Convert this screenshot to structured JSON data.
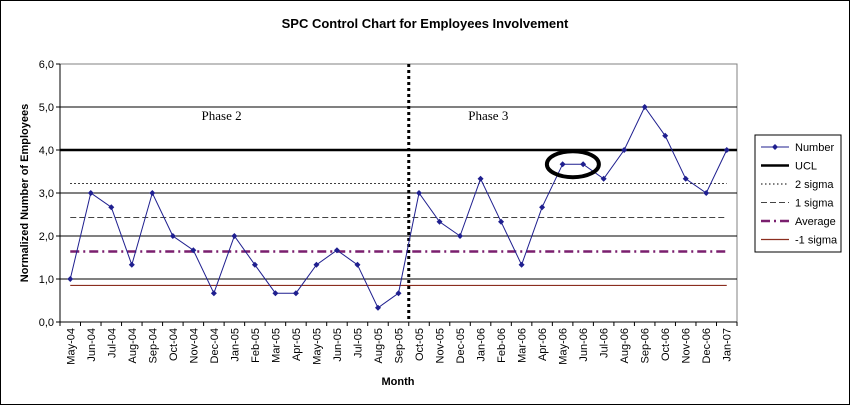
{
  "chart_data": {
    "type": "line",
    "title": "SPC Control Chart for Employees Involvement",
    "xlabel": "Month",
    "ylabel": "Normalized Number of Employees",
    "ylim": [
      0,
      6
    ],
    "y_ticks": [
      "0,0",
      "1,0",
      "2,0",
      "3,0",
      "4,0",
      "5,0",
      "6,0"
    ],
    "grid": true,
    "legend_position": "right",
    "categories": [
      "May-04",
      "Jun-04",
      "Jul-04",
      "Aug-04",
      "Sep-04",
      "Oct-04",
      "Nov-04",
      "Dec-04",
      "Jan-05",
      "Feb-05",
      "Mar-05",
      "Apr-05",
      "May-05",
      "Jun-05",
      "Jul-05",
      "Aug-05",
      "Sep-05",
      "Oct-05",
      "Nov-05",
      "Dec-05",
      "Jan-06",
      "Feb-06",
      "Mar-06",
      "Apr-06",
      "May-06",
      "Jun-06",
      "Jul-06",
      "Aug-06",
      "Sep-06",
      "Oct-06",
      "Nov-06",
      "Dec-06",
      "Jan-07"
    ],
    "series": [
      {
        "name": "Number",
        "color": "#1f1f8f",
        "style": "line-diamond",
        "values": [
          1.0,
          3.0,
          2.67,
          1.33,
          3.0,
          2.0,
          1.67,
          0.67,
          2.0,
          1.33,
          0.67,
          0.67,
          1.33,
          1.67,
          1.33,
          0.33,
          0.67,
          3.0,
          2.33,
          2.0,
          3.33,
          2.33,
          1.33,
          2.67,
          3.67,
          3.67,
          3.33,
          4.0,
          5.0,
          4.33,
          3.33,
          3.0,
          4.0
        ]
      }
    ],
    "reference_lines": [
      {
        "name": "UCL",
        "value": 4.0,
        "color": "#000000",
        "style": "solid-thick"
      },
      {
        "name": "2 sigma",
        "value": 3.22,
        "color": "#000000",
        "style": "dotted"
      },
      {
        "name": "1 sigma",
        "value": 2.43,
        "color": "#444444",
        "style": "dashed"
      },
      {
        "name": "Average",
        "value": 1.64,
        "color": "#7a1f6e",
        "style": "dash-dot"
      },
      {
        "name": "-1 sigma",
        "value": 0.85,
        "color": "#8b2e1f",
        "style": "solid-thin"
      }
    ],
    "annotations": [
      {
        "text": "Phase 2",
        "x_category": "Nov-04",
        "y": 4.7
      },
      {
        "text": "Phase 3",
        "x_category": "Dec-05",
        "y": 4.7
      }
    ],
    "phase_divider": {
      "between": [
        "Sep-05",
        "Oct-05"
      ],
      "style": "dotted-thick"
    },
    "highlight": {
      "categories": [
        "May-06",
        "Jun-06"
      ],
      "shape": "ellipse"
    }
  }
}
